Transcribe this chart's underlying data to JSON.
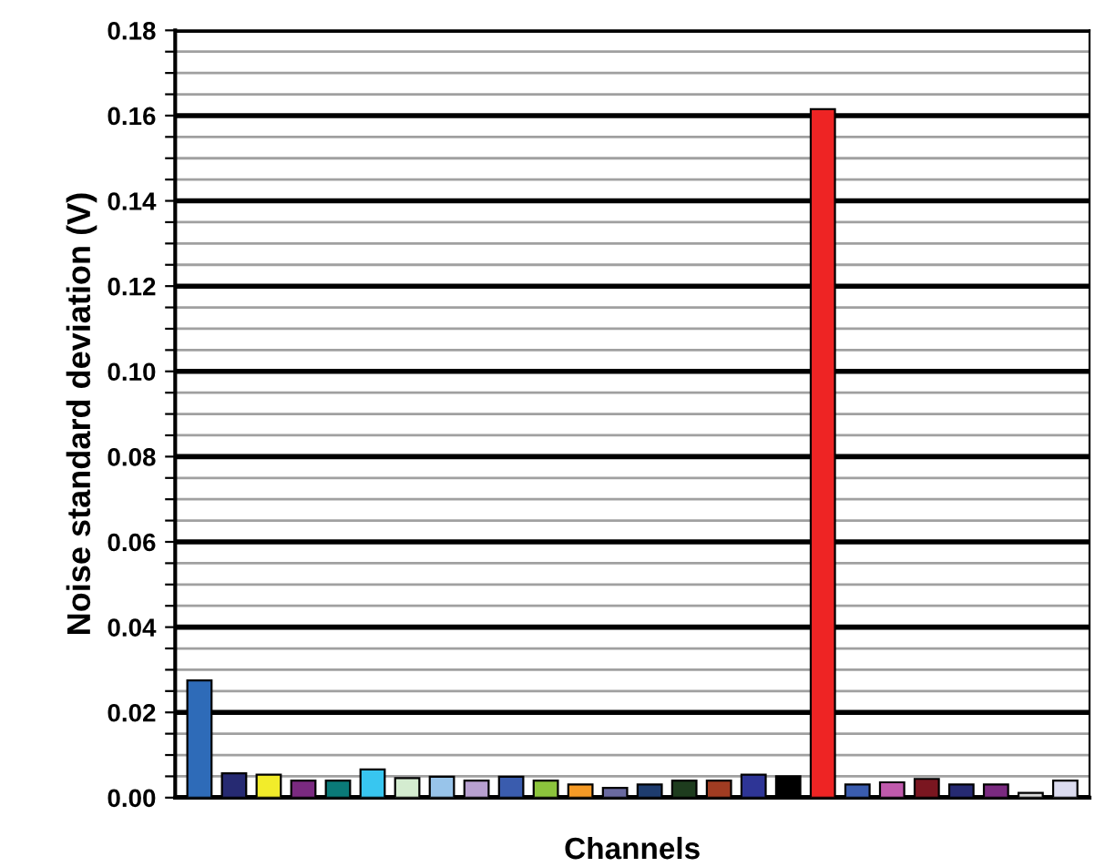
{
  "chart_data": {
    "type": "bar",
    "xlabel": "Channels",
    "ylabel": "Noise standard deviation (V)",
    "categories": [
      null,
      null,
      null,
      null,
      null,
      null,
      null,
      null,
      null,
      null,
      null,
      null,
      null,
      null,
      null,
      null,
      null,
      null,
      null,
      null,
      null,
      null,
      null,
      null,
      null,
      null
    ],
    "values": [
      0.0275,
      0.0057,
      0.0054,
      0.004,
      0.004,
      0.0066,
      0.0046,
      0.0049,
      0.004,
      0.0049,
      0.004,
      0.0031,
      0.0023,
      0.0031,
      0.004,
      0.004,
      0.0054,
      0.005,
      0.1615,
      0.0031,
      0.0036,
      0.0044,
      0.0031,
      0.0031,
      0.0011,
      0.004
    ],
    "colors": [
      "#2e6bb8",
      "#262a72",
      "#f2ec2a",
      "#7a2a80",
      "#0a7a78",
      "#38c6f0",
      "#d4ecd0",
      "#98c4ea",
      "#b8a0d0",
      "#3a5cae",
      "#8cc43c",
      "#f59a26",
      "#6a6aa0",
      "#1e3c6e",
      "#1e3c1e",
      "#a03c22",
      "#2e3596",
      "#000000",
      "#ee2424",
      "#3a5cae",
      "#c05aac",
      "#7a1620",
      "#262a72",
      "#7a2a80",
      "#d8d8d8",
      "#dcdcf0"
    ],
    "ylim": [
      0,
      0.18
    ],
    "yticks": [
      {
        "value": 0,
        "label": "0.00"
      },
      {
        "value": 0.005,
        "label": null
      },
      {
        "value": 0.01,
        "label": null
      },
      {
        "value": 0.015,
        "label": null
      },
      0.02,
      {
        "value": 0.025,
        "label": null
      },
      {
        "value": 0.03,
        "label": null
      },
      {
        "value": 0.035,
        "label": null
      },
      0.04,
      {
        "value": 0.045,
        "label": null
      },
      {
        "value": 0.05,
        "label": null
      },
      {
        "value": 0.055,
        "label": null
      },
      0.06,
      {
        "value": 0.065,
        "label": null
      },
      {
        "value": 0.07,
        "label": null
      },
      {
        "value": 0.075,
        "label": null
      },
      0.08,
      {
        "value": 0.085,
        "label": null
      },
      {
        "value": 0.09,
        "label": null
      },
      {
        "value": 0.095,
        "label": null
      },
      {
        "value": 0.1,
        "label": "0.10"
      },
      {
        "value": 0.105,
        "label": null
      },
      {
        "value": 0.11,
        "label": null
      },
      {
        "value": 0.115,
        "label": null
      },
      0.12,
      {
        "value": 0.125,
        "label": null
      },
      {
        "value": 0.13,
        "label": null
      },
      {
        "value": 0.135,
        "label": null
      },
      0.14,
      {
        "value": 0.145,
        "label": null
      },
      {
        "value": 0.15,
        "label": null
      },
      {
        "value": 0.155,
        "label": null
      },
      0.16,
      {
        "value": 0.165,
        "label": null
      },
      {
        "value": 0.17,
        "label": null
      },
      {
        "value": 0.175,
        "label": null
      },
      0.18
    ],
    "grid": "y"
  }
}
